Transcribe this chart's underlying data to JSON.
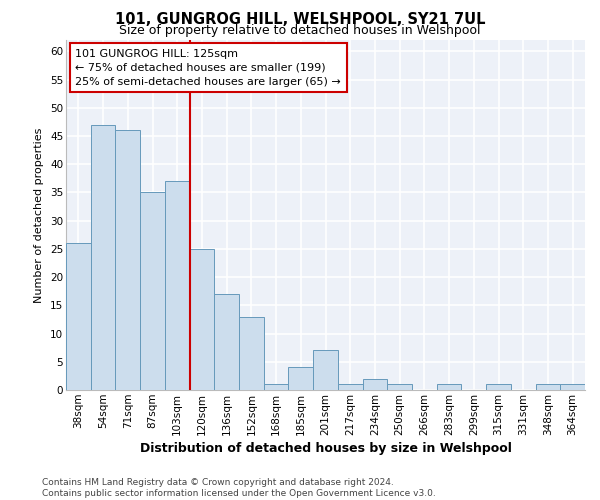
{
  "title1": "101, GUNGROG HILL, WELSHPOOL, SY21 7UL",
  "title2": "Size of property relative to detached houses in Welshpool",
  "xlabel": "Distribution of detached houses by size in Welshpool",
  "ylabel": "Number of detached properties",
  "categories": [
    "38sqm",
    "54sqm",
    "71sqm",
    "87sqm",
    "103sqm",
    "120sqm",
    "136sqm",
    "152sqm",
    "168sqm",
    "185sqm",
    "201sqm",
    "217sqm",
    "234sqm",
    "250sqm",
    "266sqm",
    "283sqm",
    "299sqm",
    "315sqm",
    "331sqm",
    "348sqm",
    "364sqm"
  ],
  "values": [
    26,
    47,
    46,
    35,
    37,
    25,
    17,
    13,
    1,
    4,
    7,
    1,
    2,
    1,
    0,
    1,
    0,
    1,
    0,
    1,
    1
  ],
  "bar_color": "#ccdded",
  "bar_edge_color": "#6699bb",
  "bar_linewidth": 0.7,
  "vline_index": 5.0,
  "vline_color": "#cc0000",
  "annotation_text": "101 GUNGROG HILL: 125sqm\n← 75% of detached houses are smaller (199)\n25% of semi-detached houses are larger (65) →",
  "ylim": [
    0,
    62
  ],
  "yticks": [
    0,
    5,
    10,
    15,
    20,
    25,
    30,
    35,
    40,
    45,
    50,
    55,
    60
  ],
  "bg_color": "#edf1f8",
  "grid_color": "#ffffff",
  "footer_text": "Contains HM Land Registry data © Crown copyright and database right 2024.\nContains public sector information licensed under the Open Government Licence v3.0.",
  "title1_fontsize": 10.5,
  "title2_fontsize": 9,
  "xlabel_fontsize": 9,
  "ylabel_fontsize": 8,
  "tick_fontsize": 7.5,
  "annot_fontsize": 8,
  "footer_fontsize": 6.5
}
